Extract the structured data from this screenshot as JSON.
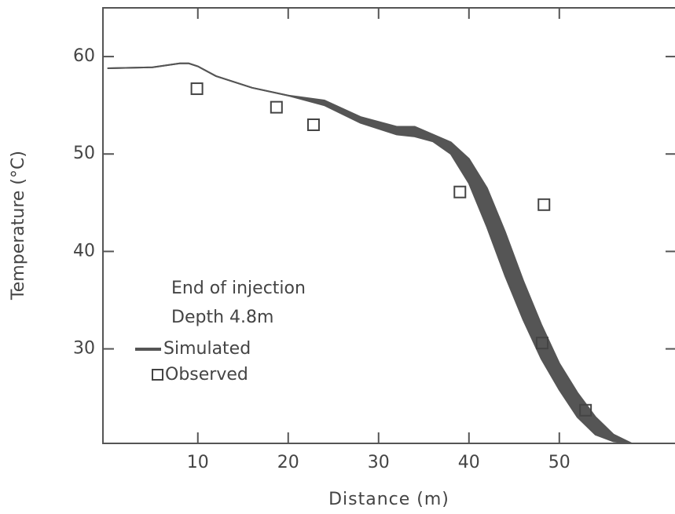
{
  "chart_data": {
    "type": "band_scatter",
    "xlabel": "Distance (m)",
    "ylabel": "Temperature (°C)",
    "annotations": [
      "End of injection",
      "Depth 4.8m"
    ],
    "xlim": [
      -0.5,
      62.8
    ],
    "ylim": [
      20.3,
      65
    ],
    "xticks": [
      10,
      20,
      30,
      40,
      50
    ],
    "yticks": [
      30,
      40,
      50,
      60
    ],
    "series": [
      {
        "name": "Simulated",
        "color": "#555555",
        "x": [
          0,
          5,
          8,
          9,
          10,
          12,
          16,
          20,
          24,
          28,
          32,
          34,
          36,
          38,
          40,
          42,
          44,
          46,
          48,
          50,
          52,
          54,
          56,
          58
        ],
        "upper": [
          58.8,
          58.9,
          59.3,
          59.3,
          59.0,
          58.0,
          56.8,
          56.0,
          55.5,
          53.8,
          52.8,
          52.8,
          52.0,
          51.2,
          49.5,
          46.5,
          42.0,
          37.0,
          32.5,
          28.5,
          25.5,
          23.0,
          21.2,
          20.3
        ],
        "lower": [
          58.8,
          58.9,
          59.3,
          59.3,
          59.0,
          58.0,
          56.8,
          56.0,
          55.0,
          53.2,
          52.0,
          51.8,
          51.3,
          50.0,
          47.0,
          42.5,
          37.5,
          33.0,
          29.0,
          25.8,
          23.0,
          21.2,
          20.5,
          20.3
        ]
      },
      {
        "name": "Observed",
        "color": "#444444",
        "x": [
          9.9,
          18.7,
          22.8,
          39.0,
          48.3,
          48.1,
          52.9
        ],
        "values": [
          56.7,
          54.8,
          53.0,
          46.1,
          44.8,
          30.6,
          23.7
        ]
      }
    ]
  }
}
